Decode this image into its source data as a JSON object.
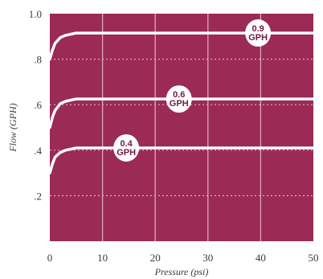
{
  "chart_data": {
    "type": "line",
    "xlabel": "Pressure (psi)",
    "ylabel": "Flow (GPH)",
    "xlim": [
      0,
      50
    ],
    "ylim": [
      0,
      1.0
    ],
    "x_ticks": [
      0,
      10,
      20,
      30,
      40,
      50
    ],
    "x_tick_labels": [
      "0",
      "10",
      "20",
      "30",
      "40",
      "50"
    ],
    "y_ticks": [
      0.2,
      0.4,
      0.6,
      0.8,
      1.0
    ],
    "y_tick_labels": [
      ".2",
      ".4",
      ".6",
      ".8",
      "1.0"
    ],
    "grid": true,
    "series": [
      {
        "label_lines": [
          "0.4",
          "GPH"
        ],
        "label_at": [
          14.5,
          0.41
        ],
        "x": [
          0,
          0.5,
          1,
          2,
          3,
          4,
          5,
          6,
          8,
          50
        ],
        "y": [
          0.3,
          0.34,
          0.37,
          0.39,
          0.4,
          0.405,
          0.41,
          0.41,
          0.41,
          0.41
        ]
      },
      {
        "label_lines": [
          "0.6",
          "GPH"
        ],
        "label_at": [
          24.5,
          0.625
        ],
        "x": [
          0,
          0.5,
          1,
          2,
          3,
          4,
          5,
          6,
          8,
          50
        ],
        "y": [
          0.5,
          0.545,
          0.575,
          0.605,
          0.615,
          0.62,
          0.625,
          0.625,
          0.625,
          0.625
        ]
      },
      {
        "label_lines": [
          "0.9",
          "GPH"
        ],
        "label_at": [
          39.5,
          0.915
        ],
        "x": [
          0,
          0.5,
          1,
          2,
          3,
          4,
          5,
          6,
          8,
          50
        ],
        "y": [
          0.8,
          0.84,
          0.87,
          0.895,
          0.905,
          0.91,
          0.915,
          0.915,
          0.915,
          0.915
        ]
      }
    ],
    "colors": {
      "background": "#9b2a55",
      "lines": "#ffffff",
      "grid": "#e8bccb",
      "badge_text": "#6e1c3c"
    }
  }
}
